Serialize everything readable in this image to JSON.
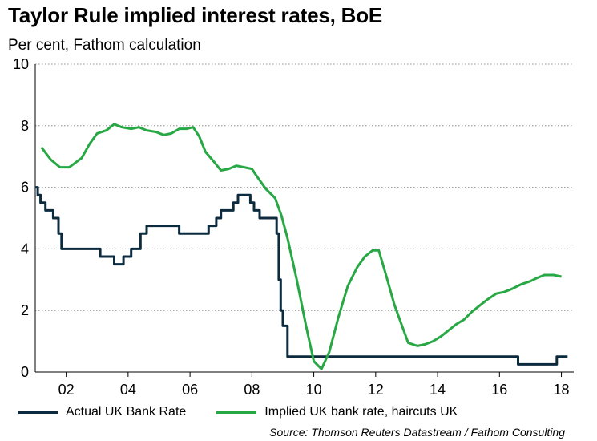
{
  "title": "Taylor Rule implied interest rates, BoE",
  "subtitle": "Per cent, Fathom calculation",
  "source": "Source: Thomson Reuters Datastream / Fathom Consulting",
  "colors": {
    "actual": "#0d2b3e",
    "implied": "#27a844",
    "grid": "#8c8c8c"
  },
  "chart_data": {
    "type": "line",
    "ylim": [
      0,
      10
    ],
    "xlim": [
      2001,
      2018.4
    ],
    "yticks": [
      0,
      2,
      4,
      6,
      8,
      10
    ],
    "xticks": [
      {
        "value": 2002,
        "label": "02"
      },
      {
        "value": 2004,
        "label": "04"
      },
      {
        "value": 2006,
        "label": "06"
      },
      {
        "value": 2008,
        "label": "08"
      },
      {
        "value": 2010,
        "label": "10"
      },
      {
        "value": 2012,
        "label": "12"
      },
      {
        "value": 2014,
        "label": "14"
      },
      {
        "value": 2016,
        "label": "16"
      },
      {
        "value": 2018,
        "label": "18"
      }
    ],
    "grid": true,
    "series": [
      {
        "name": "Actual UK Bank Rate",
        "step": true,
        "x": [
          2001.0,
          2001.08,
          2001.17,
          2001.33,
          2001.58,
          2001.75,
          2001.85,
          2003.1,
          2003.55,
          2003.85,
          2004.1,
          2004.4,
          2004.6,
          2005.65,
          2006.6,
          2006.85,
          2007.0,
          2007.4,
          2007.55,
          2007.8,
          2007.95,
          2008.07,
          2008.25,
          2008.8,
          2008.87,
          2008.93,
          2009.0,
          2009.15,
          2016.6,
          2017.85,
          2018.0,
          2018.2
        ],
        "y": [
          6.0,
          5.75,
          5.5,
          5.25,
          5.0,
          4.5,
          4.0,
          3.75,
          3.5,
          3.75,
          4.0,
          4.5,
          4.75,
          4.5,
          4.75,
          5.0,
          5.25,
          5.5,
          5.75,
          5.75,
          5.5,
          5.25,
          5.0,
          4.5,
          3.0,
          2.0,
          1.5,
          0.5,
          0.25,
          0.5,
          0.5,
          0.5
        ]
      },
      {
        "name": "Implied UK bank rate, haircuts UK",
        "step": false,
        "x": [
          2001.2,
          2001.5,
          2001.8,
          2002.1,
          2002.5,
          2002.75,
          2003.0,
          2003.3,
          2003.55,
          2003.8,
          2004.1,
          2004.35,
          2004.6,
          2004.9,
          2005.15,
          2005.4,
          2005.65,
          2005.9,
          2006.1,
          2006.3,
          2006.5,
          2006.8,
          2007.0,
          2007.25,
          2007.5,
          2007.75,
          2008.0,
          2008.2,
          2008.45,
          2008.75,
          2008.95,
          2009.15,
          2009.45,
          2009.75,
          2010.0,
          2010.25,
          2010.5,
          2010.8,
          2011.1,
          2011.4,
          2011.65,
          2011.9,
          2012.1,
          2012.35,
          2012.6,
          2012.85,
          2013.05,
          2013.35,
          2013.6,
          2013.85,
          2014.1,
          2014.35,
          2014.6,
          2014.85,
          2015.1,
          2015.35,
          2015.6,
          2015.9,
          2016.15,
          2016.4,
          2016.7,
          2017.0,
          2017.2,
          2017.45,
          2017.75,
          2018.0
        ],
        "y": [
          7.3,
          6.9,
          6.65,
          6.65,
          6.95,
          7.4,
          7.75,
          7.85,
          8.05,
          7.95,
          7.9,
          7.95,
          7.85,
          7.8,
          7.7,
          7.75,
          7.9,
          7.9,
          7.95,
          7.65,
          7.15,
          6.8,
          6.55,
          6.6,
          6.7,
          6.65,
          6.6,
          6.3,
          5.95,
          5.65,
          5.1,
          4.35,
          3.0,
          1.5,
          0.35,
          0.1,
          0.65,
          1.8,
          2.8,
          3.4,
          3.75,
          3.95,
          3.95,
          3.1,
          2.2,
          1.5,
          0.95,
          0.85,
          0.9,
          1.0,
          1.15,
          1.35,
          1.55,
          1.7,
          1.95,
          2.15,
          2.35,
          2.55,
          2.6,
          2.7,
          2.85,
          2.95,
          3.05,
          3.15,
          3.15,
          3.1
        ]
      }
    ]
  }
}
